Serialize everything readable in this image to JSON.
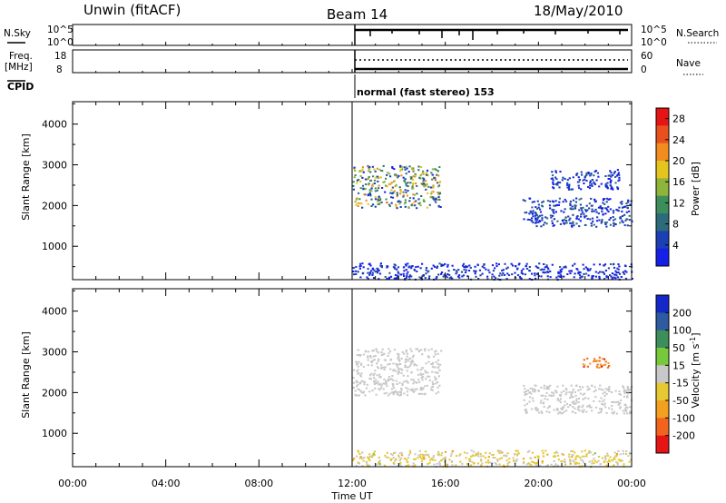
{
  "header": {
    "station": "Unwin (fitACF)",
    "beam": "Beam 14",
    "date": "18/May/2010"
  },
  "panels": {
    "nsky": {
      "left_label": "N.Sky",
      "tick_top": "10^5",
      "tick_bottom": "10^0",
      "right_label": "N.Search",
      "right_tick_top": "10^5",
      "right_tick_bottom": "10^0"
    },
    "freq": {
      "left_label_1": "Freq.",
      "left_label_2": "[MHz]",
      "tick_top": "18",
      "tick_bottom": "8",
      "right_label": "Nave",
      "right_tick_top": "60",
      "right_tick_bottom": "0"
    },
    "cpid": {
      "label": "CPID",
      "text": "normal (fast stereo) 153"
    }
  },
  "colors": {
    "power": [
      "#1420e6",
      "#1b3fb4",
      "#2d6b7a",
      "#3c8e5a",
      "#8fb43c",
      "#e6c41e",
      "#f28c1e",
      "#e8501e",
      "#e61414"
    ],
    "velocity": [
      "#e61414",
      "#f2641e",
      "#f2a01e",
      "#e6c832",
      "#c8c8c8",
      "#78c83c",
      "#3c8e5a",
      "#2d5aa0",
      "#1428c8"
    ]
  },
  "chart_data": [
    {
      "type": "heatmap",
      "parameter": "power",
      "xlabel": "Time UT",
      "ylabel": "Slant Range [km]",
      "x_ticks": [
        "00:00",
        "04:00",
        "08:00",
        "12:00",
        "16:00",
        "20:00",
        "00:00"
      ],
      "xlim_hours": [
        0,
        24
      ],
      "y_ticks": [
        1000,
        2000,
        3000,
        4000
      ],
      "ylim": [
        180,
        4550
      ],
      "colorbar": {
        "label": "Power [dB]",
        "ticks": [
          4,
          8,
          12,
          16,
          20,
          24,
          28
        ],
        "range": [
          0,
          30
        ]
      },
      "data_start_hour": 12,
      "regions": [
        {
          "hours": [
            12.0,
            15.8
          ],
          "range_km": [
            1950,
            3000
          ],
          "peak_db": 22
        },
        {
          "hours": [
            19.3,
            24.0
          ],
          "range_km": [
            1500,
            2200
          ],
          "peak_db": 8
        },
        {
          "hours": [
            20.5,
            23.5
          ],
          "range_km": [
            2400,
            2900
          ],
          "peak_db": 6
        },
        {
          "hours": [
            12.0,
            24.0
          ],
          "range_km": [
            200,
            600
          ],
          "peak_db": 5
        }
      ]
    },
    {
      "type": "heatmap",
      "parameter": "velocity",
      "xlabel": "Time UT",
      "ylabel": "Slant Range [km]",
      "x_ticks": [
        "00:00",
        "04:00",
        "08:00",
        "12:00",
        "16:00",
        "20:00",
        "00:00"
      ],
      "xlim_hours": [
        0,
        24
      ],
      "y_ticks": [
        1000,
        2000,
        3000,
        4000
      ],
      "ylim": [
        180,
        4550
      ],
      "colorbar": {
        "label": "Velocity [m s^-1]",
        "ticks": [
          -200,
          -100,
          -50,
          -15,
          15,
          50,
          100,
          200
        ],
        "range": [
          -250,
          250
        ]
      },
      "data_start_hour": 12,
      "regions": [
        {
          "hours": [
            12.0,
            15.8
          ],
          "range_km": [
            1950,
            3100
          ],
          "velocity": 0
        },
        {
          "hours": [
            19.3,
            24.0
          ],
          "range_km": [
            1500,
            2200
          ],
          "velocity": 0
        },
        {
          "hours": [
            21.8,
            23.0
          ],
          "range_km": [
            2600,
            2900
          ],
          "velocity": -150
        },
        {
          "hours": [
            12.0,
            24.0
          ],
          "range_km": [
            200,
            600
          ],
          "velocity": -30
        }
      ]
    }
  ]
}
